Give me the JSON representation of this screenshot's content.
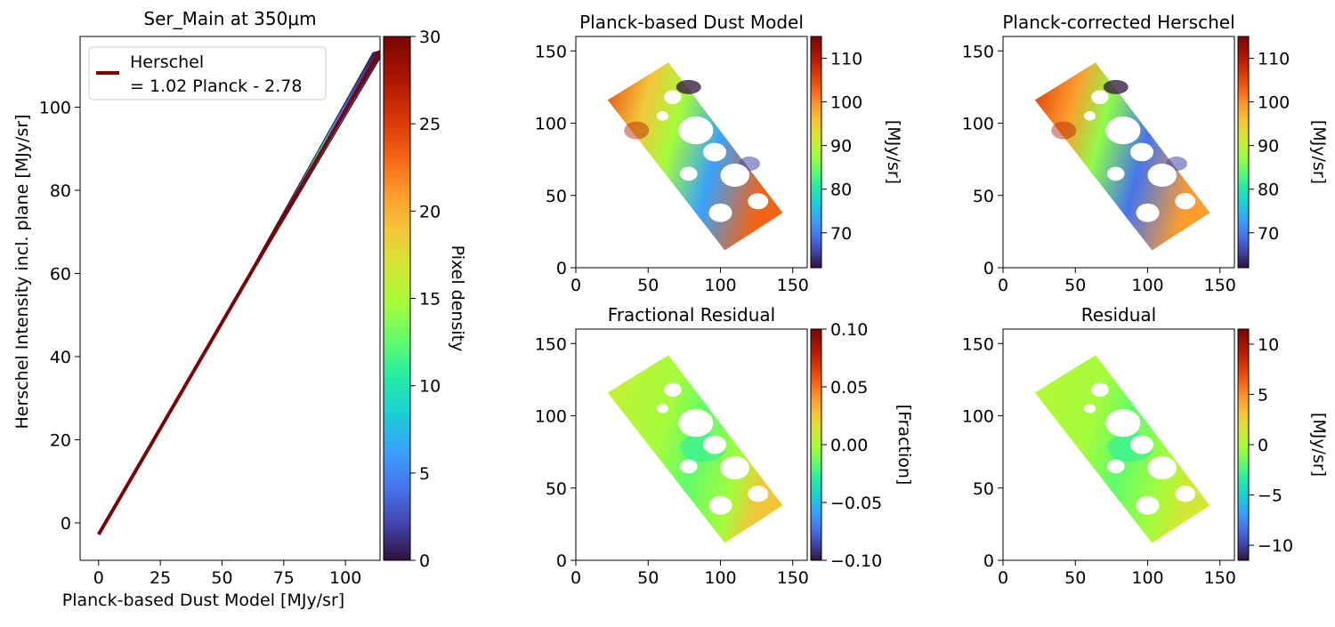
{
  "chart_data": [
    {
      "type": "scatter",
      "panel": "density",
      "title": "Ser_Main at 350μm",
      "xlabel": "Planck-based Dust Model [MJy/sr]",
      "ylabel": "Herschel Intensity incl. plane [MJy/sr]",
      "xlim": [
        -7.5,
        114
      ],
      "ylim": [
        -9,
        117
      ],
      "x_ticks": [
        "0",
        "25",
        "50",
        "75",
        "100"
      ],
      "y_ticks": [
        "0",
        "20",
        "40",
        "60",
        "80",
        "100"
      ],
      "x_tick_values": [
        0,
        25,
        50,
        75,
        100
      ],
      "y_tick_values": [
        0,
        20,
        40,
        60,
        80,
        100
      ],
      "fit": {
        "slope": 1.02,
        "intercept": -2.78,
        "x_range": [
          0,
          114
        ]
      },
      "density_x_range": [
        63,
        114
      ],
      "legend": {
        "placement": "top-left",
        "line1": "Herschel",
        "line2": "= 1.02 Planck - 2.78"
      },
      "colorbar": {
        "label": "Pixel density",
        "min": 0,
        "max": 30,
        "ticks": [
          "0",
          "5",
          "10",
          "15",
          "20",
          "25",
          "30"
        ],
        "tick_values": [
          0,
          5,
          10,
          15,
          20,
          25,
          30
        ]
      }
    },
    {
      "type": "heatmap",
      "panel": "map",
      "title": "Planck-based Dust Model",
      "x_ticks": [
        "0",
        "50",
        "100",
        "150"
      ],
      "y_ticks": [
        "0",
        "50",
        "100",
        "150"
      ],
      "colorbar": {
        "label": "[MJy/sr]",
        "min": 62,
        "max": 115,
        "ticks": [
          "70",
          "80",
          "90",
          "100",
          "110"
        ],
        "tick_values": [
          70,
          80,
          90,
          100,
          110
        ]
      }
    },
    {
      "type": "heatmap",
      "panel": "map",
      "title": "Planck-corrected Herschel",
      "x_ticks": [
        "0",
        "50",
        "100",
        "150"
      ],
      "y_ticks": [
        "0",
        "50",
        "100",
        "150"
      ],
      "colorbar": {
        "label": "[MJy/sr]",
        "min": 62,
        "max": 115,
        "ticks": [
          "70",
          "80",
          "90",
          "100",
          "110"
        ],
        "tick_values": [
          70,
          80,
          90,
          100,
          110
        ]
      }
    },
    {
      "type": "heatmap",
      "panel": "map",
      "title": "Fractional Residual",
      "x_ticks": [
        "0",
        "50",
        "100",
        "150"
      ],
      "y_ticks": [
        "0",
        "50",
        "100",
        "150"
      ],
      "colorbar": {
        "label": "[Fraction]",
        "min": -0.1,
        "max": 0.1,
        "ticks": [
          "−0.10",
          "−0.05",
          "0.00",
          "0.05",
          "0.10"
        ],
        "tick_values": [
          -0.1,
          -0.05,
          0,
          0.05,
          0.1
        ]
      }
    },
    {
      "type": "heatmap",
      "panel": "map",
      "title": "Residual",
      "x_ticks": [
        "0",
        "50",
        "100",
        "150"
      ],
      "y_ticks": [
        "0",
        "50",
        "100",
        "150"
      ],
      "colorbar": {
        "label": "[MJy/sr]",
        "min": -11.5,
        "max": 11.5,
        "ticks": [
          "−10",
          "−5",
          "0",
          "5",
          "10"
        ],
        "tick_values": [
          -10,
          -5,
          0,
          5,
          10
        ]
      }
    }
  ],
  "map_axes": {
    "xlim": [
      0,
      160
    ],
    "ylim": [
      0,
      160
    ],
    "tick_values": [
      0,
      50,
      100,
      150
    ]
  },
  "colors": {
    "fit_line": "#7a0403",
    "frame": "#000000",
    "background": "#ffffff"
  }
}
